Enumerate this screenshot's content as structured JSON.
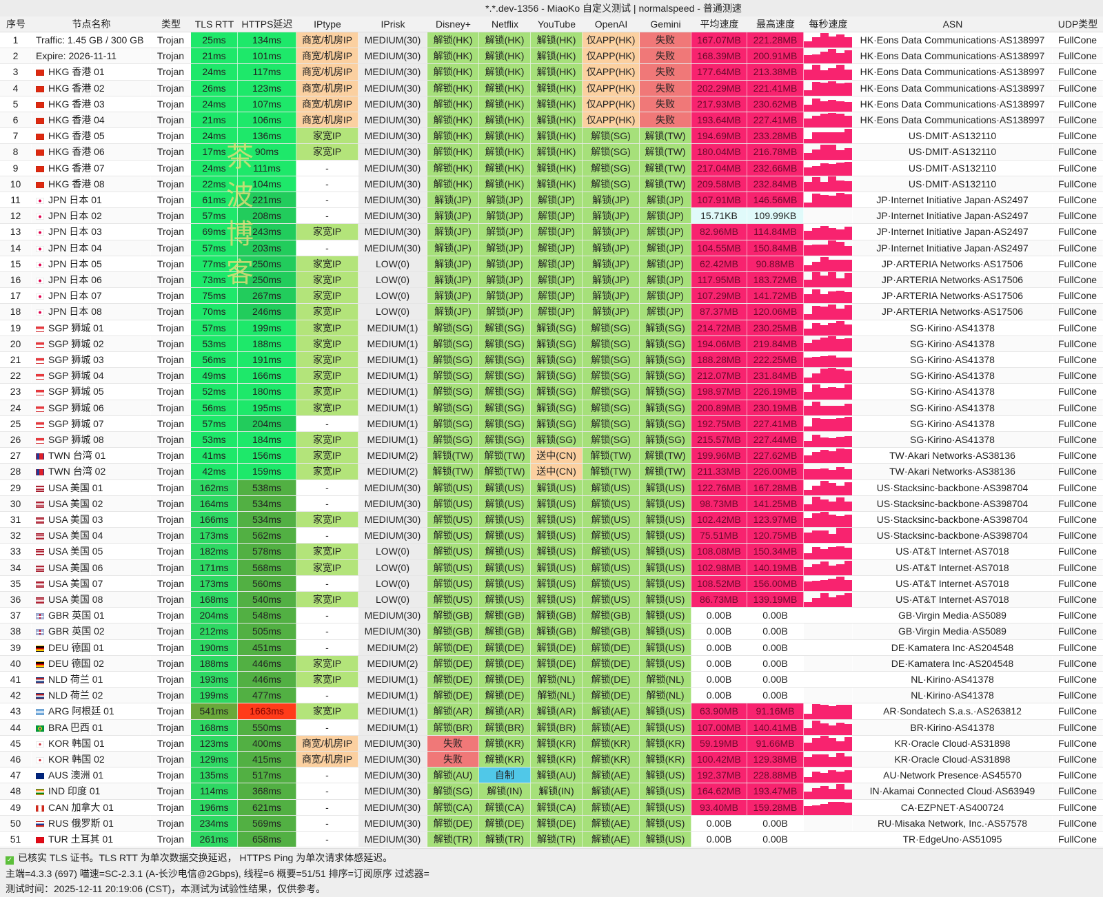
{
  "title": "*.*.dev-1356 - MiaoKo 自定义测试 | normalspeed - 普通测速",
  "watermark": "茶波博客",
  "headers": [
    "序号",
    "节点名称",
    "类型",
    "TLS RTT",
    "HTTPS延迟",
    "IPtype",
    "IPrisk",
    "Disney+",
    "Netflix",
    "YouTube",
    "OpenAI",
    "Gemini",
    "平均速度",
    "最高速度",
    "每秒速度",
    "ASN",
    "UDP类型"
  ],
  "colors": {
    "latency_fast": "#1ee86a",
    "latency_mid": "#22cc5c",
    "latency_slow": "#52b043",
    "latency_bad": "#ff3b1a",
    "olive": "#6aa83a",
    "business_ip": "#fbd0a0",
    "home_ip": "#b3e47a",
    "risk": "#ececec",
    "unlock": "#a6e07a",
    "app_only": "#fbd0a0",
    "fail": "#f07878",
    "cn": "#fbd0a0",
    "original": "#50c8e8",
    "speed": "#f8236f",
    "speed_low": "#e0fafa"
  },
  "rows": [
    [
      "1",
      "",
      "Traffic: 1.45 GB / 300 GB",
      "Trojan",
      "25ms",
      "134ms",
      "商宽/机房IP",
      "MEDIUM(30)",
      "解锁(HK)",
      "解锁(HK)",
      "解锁(HK)",
      "仅APP(HK)",
      "失败",
      "167.07MB",
      "221.28MB",
      "HK·Eons Data Communications·AS138997",
      "FullCone"
    ],
    [
      "2",
      "",
      "Expire: 2026-11-11",
      "Trojan",
      "21ms",
      "101ms",
      "商宽/机房IP",
      "MEDIUM(30)",
      "解锁(HK)",
      "解锁(HK)",
      "解锁(HK)",
      "仅APP(HK)",
      "失败",
      "168.39MB",
      "200.91MB",
      "HK·Eons Data Communications·AS138997",
      "FullCone"
    ],
    [
      "3",
      "flag-hk",
      "HKG 香港 01",
      "Trojan",
      "24ms",
      "117ms",
      "商宽/机房IP",
      "MEDIUM(30)",
      "解锁(HK)",
      "解锁(HK)",
      "解锁(HK)",
      "仅APP(HK)",
      "失败",
      "177.64MB",
      "213.38MB",
      "HK·Eons Data Communications·AS138997",
      "FullCone"
    ],
    [
      "4",
      "flag-hk",
      "HKG 香港 02",
      "Trojan",
      "26ms",
      "123ms",
      "商宽/机房IP",
      "MEDIUM(30)",
      "解锁(HK)",
      "解锁(HK)",
      "解锁(HK)",
      "仅APP(HK)",
      "失败",
      "202.29MB",
      "221.41MB",
      "HK·Eons Data Communications·AS138997",
      "FullCone"
    ],
    [
      "5",
      "flag-hk",
      "HKG 香港 03",
      "Trojan",
      "24ms",
      "107ms",
      "商宽/机房IP",
      "MEDIUM(30)",
      "解锁(HK)",
      "解锁(HK)",
      "解锁(HK)",
      "仅APP(HK)",
      "失败",
      "217.93MB",
      "230.62MB",
      "HK·Eons Data Communications·AS138997",
      "FullCone"
    ],
    [
      "6",
      "flag-hk",
      "HKG 香港 04",
      "Trojan",
      "21ms",
      "106ms",
      "商宽/机房IP",
      "MEDIUM(30)",
      "解锁(HK)",
      "解锁(HK)",
      "解锁(HK)",
      "仅APP(HK)",
      "失败",
      "193.64MB",
      "227.41MB",
      "HK·Eons Data Communications·AS138997",
      "FullCone"
    ],
    [
      "7",
      "flag-hk",
      "HKG 香港 05",
      "Trojan",
      "24ms",
      "136ms",
      "家宽IP",
      "MEDIUM(30)",
      "解锁(HK)",
      "解锁(HK)",
      "解锁(HK)",
      "解锁(SG)",
      "解锁(TW)",
      "194.69MB",
      "233.28MB",
      "US·DMIT·AS132110",
      "FullCone"
    ],
    [
      "8",
      "flag-hk",
      "HKG 香港 06",
      "Trojan",
      "17ms",
      "90ms",
      "家宽IP",
      "MEDIUM(30)",
      "解锁(HK)",
      "解锁(HK)",
      "解锁(HK)",
      "解锁(SG)",
      "解锁(TW)",
      "180.04MB",
      "216.78MB",
      "US·DMIT·AS132110",
      "FullCone"
    ],
    [
      "9",
      "flag-hk",
      "HKG 香港 07",
      "Trojan",
      "24ms",
      "111ms",
      "-",
      "MEDIUM(30)",
      "解锁(HK)",
      "解锁(HK)",
      "解锁(HK)",
      "解锁(SG)",
      "解锁(TW)",
      "217.04MB",
      "232.66MB",
      "US·DMIT·AS132110",
      "FullCone"
    ],
    [
      "10",
      "flag-hk",
      "HKG 香港 08",
      "Trojan",
      "22ms",
      "104ms",
      "-",
      "MEDIUM(30)",
      "解锁(HK)",
      "解锁(HK)",
      "解锁(HK)",
      "解锁(SG)",
      "解锁(TW)",
      "209.58MB",
      "232.84MB",
      "US·DMIT·AS132110",
      "FullCone"
    ],
    [
      "11",
      "flag-jp",
      "JPN 日本 01",
      "Trojan",
      "61ms",
      "221ms",
      "-",
      "MEDIUM(30)",
      "解锁(JP)",
      "解锁(JP)",
      "解锁(JP)",
      "解锁(JP)",
      "解锁(JP)",
      "107.91MB",
      "146.56MB",
      "JP·Internet Initiative Japan·AS2497",
      "FullCone"
    ],
    [
      "12",
      "flag-jp",
      "JPN 日本 02",
      "Trojan",
      "57ms",
      "208ms",
      "-",
      "MEDIUM(30)",
      "解锁(JP)",
      "解锁(JP)",
      "解锁(JP)",
      "解锁(JP)",
      "解锁(JP)",
      "15.71KB",
      "109.99KB",
      "JP·Internet Initiative Japan·AS2497",
      "FullCone"
    ],
    [
      "13",
      "flag-jp",
      "JPN 日本 03",
      "Trojan",
      "69ms",
      "243ms",
      "家宽IP",
      "MEDIUM(30)",
      "解锁(JP)",
      "解锁(JP)",
      "解锁(JP)",
      "解锁(JP)",
      "解锁(JP)",
      "82.96MB",
      "114.84MB",
      "JP·Internet Initiative Japan·AS2497",
      "FullCone"
    ],
    [
      "14",
      "flag-jp",
      "JPN 日本 04",
      "Trojan",
      "57ms",
      "203ms",
      "-",
      "MEDIUM(30)",
      "解锁(JP)",
      "解锁(JP)",
      "解锁(JP)",
      "解锁(JP)",
      "解锁(JP)",
      "104.55MB",
      "150.84MB",
      "JP·Internet Initiative Japan·AS2497",
      "FullCone"
    ],
    [
      "15",
      "flag-jp",
      "JPN 日本 05",
      "Trojan",
      "77ms",
      "250ms",
      "家宽IP",
      "LOW(0)",
      "解锁(JP)",
      "解锁(JP)",
      "解锁(JP)",
      "解锁(JP)",
      "解锁(JP)",
      "62.42MB",
      "90.88MB",
      "JP·ARTERIA Networks·AS17506",
      "FullCone"
    ],
    [
      "16",
      "flag-jp",
      "JPN 日本 06",
      "Trojan",
      "73ms",
      "250ms",
      "家宽IP",
      "LOW(0)",
      "解锁(JP)",
      "解锁(JP)",
      "解锁(JP)",
      "解锁(JP)",
      "解锁(JP)",
      "117.95MB",
      "183.72MB",
      "JP·ARTERIA Networks·AS17506",
      "FullCone"
    ],
    [
      "17",
      "flag-jp",
      "JPN 日本 07",
      "Trojan",
      "75ms",
      "267ms",
      "家宽IP",
      "LOW(0)",
      "解锁(JP)",
      "解锁(JP)",
      "解锁(JP)",
      "解锁(JP)",
      "解锁(JP)",
      "107.29MB",
      "141.72MB",
      "JP·ARTERIA Networks·AS17506",
      "FullCone"
    ],
    [
      "18",
      "flag-jp",
      "JPN 日本 08",
      "Trojan",
      "70ms",
      "246ms",
      "家宽IP",
      "LOW(0)",
      "解锁(JP)",
      "解锁(JP)",
      "解锁(JP)",
      "解锁(JP)",
      "解锁(JP)",
      "87.37MB",
      "120.06MB",
      "JP·ARTERIA Networks·AS17506",
      "FullCone"
    ],
    [
      "19",
      "flag-sg",
      "SGP 狮城 01",
      "Trojan",
      "57ms",
      "199ms",
      "家宽IP",
      "MEDIUM(1)",
      "解锁(SG)",
      "解锁(SG)",
      "解锁(SG)",
      "解锁(SG)",
      "解锁(SG)",
      "214.72MB",
      "230.25MB",
      "SG·Kirino·AS41378",
      "FullCone"
    ],
    [
      "20",
      "flag-sg",
      "SGP 狮城 02",
      "Trojan",
      "53ms",
      "188ms",
      "家宽IP",
      "MEDIUM(1)",
      "解锁(SG)",
      "解锁(SG)",
      "解锁(SG)",
      "解锁(SG)",
      "解锁(SG)",
      "194.06MB",
      "219.84MB",
      "SG·Kirino·AS41378",
      "FullCone"
    ],
    [
      "21",
      "flag-sg",
      "SGP 狮城 03",
      "Trojan",
      "56ms",
      "191ms",
      "家宽IP",
      "MEDIUM(1)",
      "解锁(SG)",
      "解锁(SG)",
      "解锁(SG)",
      "解锁(SG)",
      "解锁(SG)",
      "188.28MB",
      "222.25MB",
      "SG·Kirino·AS41378",
      "FullCone"
    ],
    [
      "22",
      "flag-sg",
      "SGP 狮城 04",
      "Trojan",
      "49ms",
      "166ms",
      "家宽IP",
      "MEDIUM(1)",
      "解锁(SG)",
      "解锁(SG)",
      "解锁(SG)",
      "解锁(SG)",
      "解锁(SG)",
      "212.07MB",
      "231.84MB",
      "SG·Kirino·AS41378",
      "FullCone"
    ],
    [
      "23",
      "flag-sg",
      "SGP 狮城 05",
      "Trojan",
      "52ms",
      "180ms",
      "家宽IP",
      "MEDIUM(1)",
      "解锁(SG)",
      "解锁(SG)",
      "解锁(SG)",
      "解锁(SG)",
      "解锁(SG)",
      "198.97MB",
      "226.19MB",
      "SG·Kirino·AS41378",
      "FullCone"
    ],
    [
      "24",
      "flag-sg",
      "SGP 狮城 06",
      "Trojan",
      "56ms",
      "195ms",
      "家宽IP",
      "MEDIUM(1)",
      "解锁(SG)",
      "解锁(SG)",
      "解锁(SG)",
      "解锁(SG)",
      "解锁(SG)",
      "200.89MB",
      "230.19MB",
      "SG·Kirino·AS41378",
      "FullCone"
    ],
    [
      "25",
      "flag-sg",
      "SGP 狮城 07",
      "Trojan",
      "57ms",
      "204ms",
      "-",
      "MEDIUM(1)",
      "解锁(SG)",
      "解锁(SG)",
      "解锁(SG)",
      "解锁(SG)",
      "解锁(SG)",
      "192.75MB",
      "227.41MB",
      "SG·Kirino·AS41378",
      "FullCone"
    ],
    [
      "26",
      "flag-sg",
      "SGP 狮城 08",
      "Trojan",
      "53ms",
      "184ms",
      "家宽IP",
      "MEDIUM(1)",
      "解锁(SG)",
      "解锁(SG)",
      "解锁(SG)",
      "解锁(SG)",
      "解锁(SG)",
      "215.57MB",
      "227.44MB",
      "SG·Kirino·AS41378",
      "FullCone"
    ],
    [
      "27",
      "flag-tw",
      "TWN 台湾 01",
      "Trojan",
      "41ms",
      "156ms",
      "家宽IP",
      "MEDIUM(2)",
      "解锁(TW)",
      "解锁(TW)",
      "送中(CN)",
      "解锁(TW)",
      "解锁(TW)",
      "199.96MB",
      "227.62MB",
      "TW·Akari Networks·AS38136",
      "FullCone"
    ],
    [
      "28",
      "flag-tw",
      "TWN 台湾 02",
      "Trojan",
      "42ms",
      "159ms",
      "家宽IP",
      "MEDIUM(2)",
      "解锁(TW)",
      "解锁(TW)",
      "送中(CN)",
      "解锁(TW)",
      "解锁(TW)",
      "211.33MB",
      "226.00MB",
      "TW·Akari Networks·AS38136",
      "FullCone"
    ],
    [
      "29",
      "flag-us",
      "USA 美国 01",
      "Trojan",
      "162ms",
      "538ms",
      "-",
      "MEDIUM(30)",
      "解锁(US)",
      "解锁(US)",
      "解锁(US)",
      "解锁(US)",
      "解锁(US)",
      "122.76MB",
      "167.28MB",
      "US·Stacksinc-backbone·AS398704",
      "FullCone"
    ],
    [
      "30",
      "flag-us",
      "USA 美国 02",
      "Trojan",
      "164ms",
      "534ms",
      "-",
      "MEDIUM(30)",
      "解锁(US)",
      "解锁(US)",
      "解锁(US)",
      "解锁(US)",
      "解锁(US)",
      "98.73MB",
      "141.25MB",
      "US·Stacksinc-backbone·AS398704",
      "FullCone"
    ],
    [
      "31",
      "flag-us",
      "USA 美国 03",
      "Trojan",
      "166ms",
      "534ms",
      "家宽IP",
      "MEDIUM(30)",
      "解锁(US)",
      "解锁(US)",
      "解锁(US)",
      "解锁(US)",
      "解锁(US)",
      "102.42MB",
      "123.97MB",
      "US·Stacksinc-backbone·AS398704",
      "FullCone"
    ],
    [
      "32",
      "flag-us",
      "USA 美国 04",
      "Trojan",
      "173ms",
      "562ms",
      "-",
      "MEDIUM(30)",
      "解锁(US)",
      "解锁(US)",
      "解锁(US)",
      "解锁(US)",
      "解锁(US)",
      "75.51MB",
      "120.75MB",
      "US·Stacksinc-backbone·AS398704",
      "FullCone"
    ],
    [
      "33",
      "flag-us",
      "USA 美国 05",
      "Trojan",
      "182ms",
      "578ms",
      "家宽IP",
      "LOW(0)",
      "解锁(US)",
      "解锁(US)",
      "解锁(US)",
      "解锁(US)",
      "解锁(US)",
      "108.08MB",
      "150.34MB",
      "US·AT&T Internet·AS7018",
      "FullCone"
    ],
    [
      "34",
      "flag-us",
      "USA 美国 06",
      "Trojan",
      "171ms",
      "568ms",
      "家宽IP",
      "LOW(0)",
      "解锁(US)",
      "解锁(US)",
      "解锁(US)",
      "解锁(US)",
      "解锁(US)",
      "102.98MB",
      "140.19MB",
      "US·AT&T Internet·AS7018",
      "FullCone"
    ],
    [
      "35",
      "flag-us",
      "USA 美国 07",
      "Trojan",
      "173ms",
      "560ms",
      "-",
      "LOW(0)",
      "解锁(US)",
      "解锁(US)",
      "解锁(US)",
      "解锁(US)",
      "解锁(US)",
      "108.52MB",
      "156.00MB",
      "US·AT&T Internet·AS7018",
      "FullCone"
    ],
    [
      "36",
      "flag-us",
      "USA 美国 08",
      "Trojan",
      "168ms",
      "540ms",
      "家宽IP",
      "LOW(0)",
      "解锁(US)",
      "解锁(US)",
      "解锁(US)",
      "解锁(US)",
      "解锁(US)",
      "86.73MB",
      "139.19MB",
      "US·AT&T Internet·AS7018",
      "FullCone"
    ],
    [
      "37",
      "flag-gb",
      "GBR 英国 01",
      "Trojan",
      "204ms",
      "548ms",
      "-",
      "MEDIUM(30)",
      "解锁(GB)",
      "解锁(GB)",
      "解锁(GB)",
      "解锁(GB)",
      "解锁(US)",
      "0.00B",
      "0.00B",
      "GB·Virgin Media·AS5089",
      "FullCone"
    ],
    [
      "38",
      "flag-gb",
      "GBR 英国 02",
      "Trojan",
      "212ms",
      "505ms",
      "-",
      "MEDIUM(30)",
      "解锁(GB)",
      "解锁(GB)",
      "解锁(GB)",
      "解锁(GB)",
      "解锁(US)",
      "0.00B",
      "0.00B",
      "GB·Virgin Media·AS5089",
      "FullCone"
    ],
    [
      "39",
      "flag-de",
      "DEU 德国 01",
      "Trojan",
      "190ms",
      "451ms",
      "-",
      "MEDIUM(2)",
      "解锁(DE)",
      "解锁(DE)",
      "解锁(DE)",
      "解锁(DE)",
      "解锁(US)",
      "0.00B",
      "0.00B",
      "DE·Kamatera Inc·AS204548",
      "FullCone"
    ],
    [
      "40",
      "flag-de",
      "DEU 德国 02",
      "Trojan",
      "188ms",
      "446ms",
      "家宽IP",
      "MEDIUM(2)",
      "解锁(DE)",
      "解锁(DE)",
      "解锁(DE)",
      "解锁(DE)",
      "解锁(US)",
      "0.00B",
      "0.00B",
      "DE·Kamatera Inc·AS204548",
      "FullCone"
    ],
    [
      "41",
      "flag-nl",
      "NLD 荷兰 01",
      "Trojan",
      "193ms",
      "446ms",
      "家宽IP",
      "MEDIUM(1)",
      "解锁(DE)",
      "解锁(DE)",
      "解锁(NL)",
      "解锁(DE)",
      "解锁(NL)",
      "0.00B",
      "0.00B",
      "NL·Kirino·AS41378",
      "FullCone"
    ],
    [
      "42",
      "flag-nl",
      "NLD 荷兰 02",
      "Trojan",
      "199ms",
      "477ms",
      "-",
      "MEDIUM(1)",
      "解锁(DE)",
      "解锁(DE)",
      "解锁(NL)",
      "解锁(DE)",
      "解锁(NL)",
      "0.00B",
      "0.00B",
      "NL·Kirino·AS41378",
      "FullCone"
    ],
    [
      "43",
      "flag-ar",
      "ARG 阿根廷 01",
      "Trojan",
      "541ms",
      "1663ms",
      "家宽IP",
      "MEDIUM(1)",
      "解锁(AR)",
      "解锁(AR)",
      "解锁(AR)",
      "解锁(AE)",
      "解锁(US)",
      "63.90MB",
      "91.16MB",
      "AR·Sondatech S.a.s.·AS263812",
      "FullCone"
    ],
    [
      "44",
      "flag-br",
      "BRA 巴西 01",
      "Trojan",
      "168ms",
      "550ms",
      "-",
      "MEDIUM(1)",
      "解锁(BR)",
      "解锁(BR)",
      "解锁(BR)",
      "解锁(AE)",
      "解锁(US)",
      "107.00MB",
      "140.41MB",
      "BR·Kirino·AS41378",
      "FullCone"
    ],
    [
      "45",
      "flag-kr",
      "KOR 韩国 01",
      "Trojan",
      "123ms",
      "400ms",
      "商宽/机房IP",
      "MEDIUM(30)",
      "失败",
      "解锁(KR)",
      "解锁(KR)",
      "解锁(KR)",
      "解锁(KR)",
      "59.19MB",
      "91.66MB",
      "KR·Oracle Cloud·AS31898",
      "FullCone"
    ],
    [
      "46",
      "flag-kr",
      "KOR 韩国 02",
      "Trojan",
      "129ms",
      "415ms",
      "商宽/机房IP",
      "MEDIUM(30)",
      "失败",
      "解锁(KR)",
      "解锁(KR)",
      "解锁(KR)",
      "解锁(KR)",
      "100.42MB",
      "129.38MB",
      "KR·Oracle Cloud·AS31898",
      "FullCone"
    ],
    [
      "47",
      "flag-au",
      "AUS 澳洲 01",
      "Trojan",
      "135ms",
      "517ms",
      "-",
      "MEDIUM(30)",
      "解锁(AU)",
      "自制",
      "解锁(AU)",
      "解锁(AE)",
      "解锁(US)",
      "192.37MB",
      "228.88MB",
      "AU·Network Presence·AS45570",
      "FullCone"
    ],
    [
      "48",
      "flag-in",
      "IND 印度 01",
      "Trojan",
      "114ms",
      "368ms",
      "-",
      "MEDIUM(30)",
      "解锁(SG)",
      "解锁(IN)",
      "解锁(IN)",
      "解锁(AE)",
      "解锁(US)",
      "164.62MB",
      "193.47MB",
      "IN·Akamai Connected Cloud·AS63949",
      "FullCone"
    ],
    [
      "49",
      "flag-ca",
      "CAN 加拿大 01",
      "Trojan",
      "196ms",
      "621ms",
      "-",
      "MEDIUM(30)",
      "解锁(CA)",
      "解锁(CA)",
      "解锁(CA)",
      "解锁(AE)",
      "解锁(US)",
      "93.40MB",
      "159.28MB",
      "CA·EZPNET·AS400724",
      "FullCone"
    ],
    [
      "50",
      "flag-ru",
      "RUS 俄罗斯 01",
      "Trojan",
      "234ms",
      "569ms",
      "-",
      "MEDIUM(30)",
      "解锁(DE)",
      "解锁(DE)",
      "解锁(DE)",
      "解锁(AE)",
      "解锁(US)",
      "0.00B",
      "0.00B",
      "RU·Misaka Network, Inc.·AS57578",
      "FullCone"
    ],
    [
      "51",
      "flag-tr",
      "TUR 土耳其 01",
      "Trojan",
      "261ms",
      "658ms",
      "-",
      "MEDIUM(30)",
      "解锁(TR)",
      "解锁(TR)",
      "解锁(TR)",
      "解锁(AE)",
      "解锁(US)",
      "0.00B",
      "0.00B",
      "TR·EdgeUno·AS51095",
      "FullCone"
    ]
  ],
  "footer": {
    "line1": "已核实 TLS 证书。TLS RTT 为单次数据交换延迟， HTTPS Ping 为单次请求体感延迟。",
    "line2": "主端=4.3.3 (697) 喵速=SC-2.3.1 (A-长沙电信@2Gbps), 线程=6 概要=51/51 排序=订阅原序 过滤器=",
    "line3": "测试时间：2025-12-11 20:19:06 (CST)，本测试为试验性结果，仅供参考。"
  }
}
